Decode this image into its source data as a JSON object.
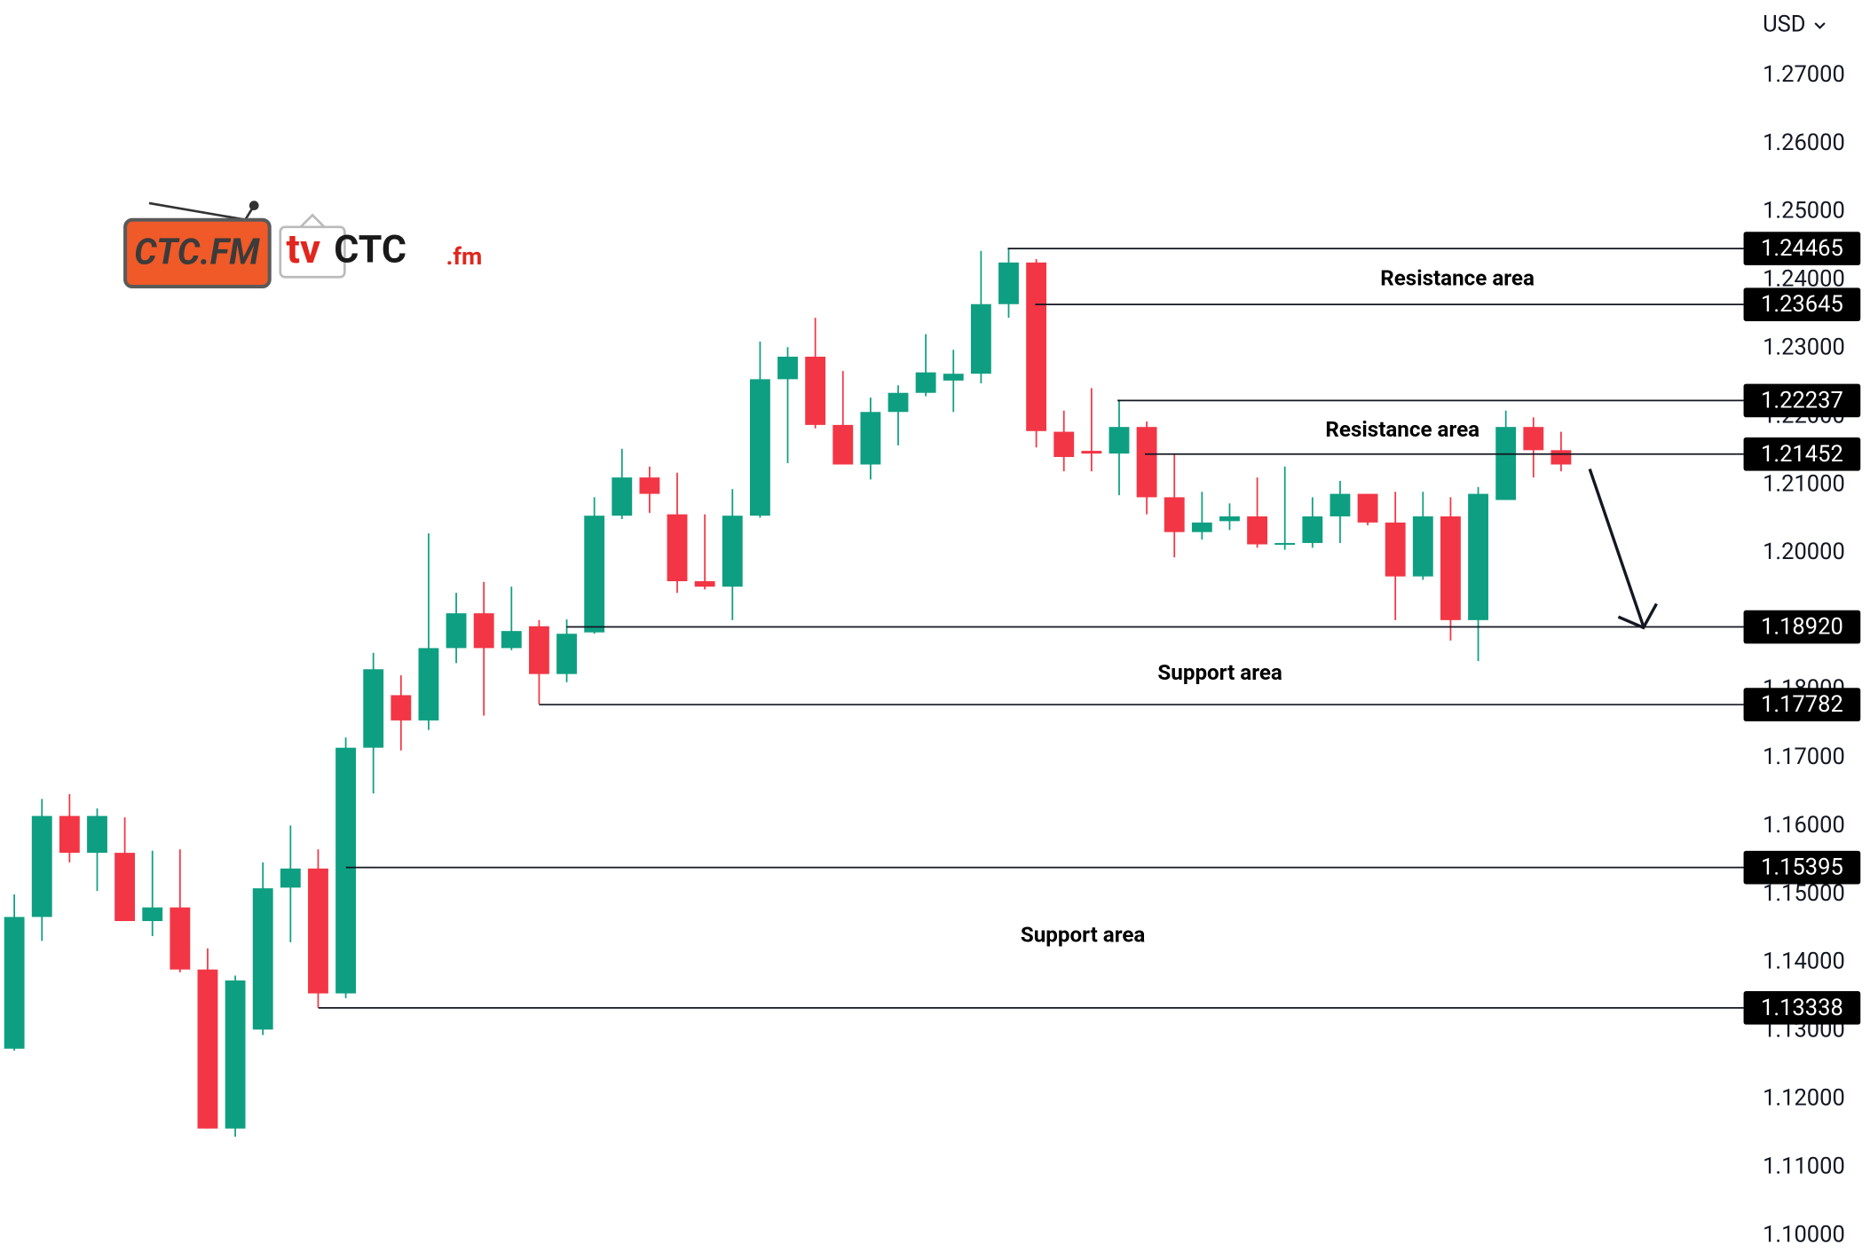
{
  "currency": "USD",
  "logo": {
    "mark": "CTC.FM",
    "tv": "tv",
    "brand": "CTC",
    "suffix": ".fm"
  },
  "chart_data": {
    "type": "candlestick",
    "up_color": "#0e9f82",
    "down_color": "#f23645",
    "open": [
      1.1274,
      1.1467,
      1.1615,
      1.1561,
      1.1561,
      1.1461,
      1.1481,
      1.139,
      1.1157,
      1.1302,
      1.151,
      1.1538,
      1.1355,
      1.1715,
      1.1792,
      1.1755,
      1.1861,
      1.1912,
      1.1861,
      1.1893,
      1.1823,
      1.1884,
      1.2055,
      1.2111,
      1.2057,
      1.1959,
      1.1951,
      1.2055,
      1.2255,
      1.2288,
      1.2188,
      1.213,
      1.2207,
      1.2235,
      1.2253,
      1.2263,
      1.2365,
      1.2426,
      1.2178,
      1.215,
      1.2146,
      1.2185,
      1.2082,
      1.2031,
      1.2047,
      1.2054,
      1.2013,
      1.2015,
      1.2054,
      1.2087,
      1.2045,
      1.1966,
      1.2054,
      1.1902,
      1.2078,
      1.2185,
      1.2151
    ],
    "high": [
      1.15,
      1.164,
      1.1647,
      1.1626,
      1.1613,
      1.1564,
      1.1566,
      1.1421,
      1.1381,
      1.1547,
      1.1601,
      1.1566,
      1.173,
      1.1854,
      1.1821,
      1.2029,
      1.1942,
      1.1958,
      1.1951,
      1.1902,
      1.1903,
      1.2082,
      1.2153,
      1.2127,
      1.2118,
      1.2057,
      1.2094,
      1.231,
      1.2302,
      1.2345,
      1.2267,
      1.2228,
      1.2246,
      1.2321,
      1.2298,
      1.2443,
      1.2447,
      1.2431,
      1.2209,
      1.2242,
      1.2225,
      1.2193,
      1.2146,
      1.209,
      1.2073,
      1.2111,
      1.2127,
      1.2082,
      1.2106,
      1.2087,
      1.209,
      1.209,
      1.2082,
      1.2097,
      1.2209,
      1.2199,
      1.2178
    ],
    "low": [
      1.1271,
      1.1432,
      1.1547,
      1.1505,
      1.1461,
      1.1439,
      1.1386,
      1.1157,
      1.1145,
      1.1294,
      1.143,
      1.1334,
      1.1348,
      1.1648,
      1.1711,
      1.1741,
      1.1839,
      1.1762,
      1.1858,
      1.1779,
      1.1811,
      1.1882,
      1.205,
      1.2059,
      1.1942,
      1.1947,
      1.1902,
      1.2052,
      1.2132,
      1.2183,
      1.213,
      1.2108,
      1.2158,
      1.223,
      1.2207,
      1.2249,
      1.2345,
      1.2155,
      1.212,
      1.212,
      1.2085,
      1.2057,
      1.1994,
      1.202,
      1.2034,
      1.2008,
      1.2005,
      1.2008,
      1.2015,
      1.2041,
      1.1902,
      1.1961,
      1.1872,
      1.1842,
      1.2078,
      1.2111,
      1.212
    ],
    "close": [
      1.1467,
      1.1615,
      1.1561,
      1.1615,
      1.1461,
      1.1481,
      1.139,
      1.1157,
      1.1374,
      1.1509,
      1.1538,
      1.1355,
      1.1715,
      1.183,
      1.1755,
      1.1861,
      1.1912,
      1.1861,
      1.1886,
      1.1823,
      1.1882,
      1.2055,
      1.2111,
      1.2087,
      1.1959,
      1.1951,
      1.2055,
      1.2255,
      1.2288,
      1.2188,
      1.213,
      1.2207,
      1.2235,
      1.2265,
      1.2263,
      1.2365,
      1.2426,
      1.2179,
      1.2141,
      1.2146,
      1.2185,
      1.2082,
      1.2031,
      1.2045,
      1.2054,
      1.2013,
      1.2015,
      1.2054,
      1.2087,
      1.2045,
      1.1966,
      1.2054,
      1.1902,
      1.2087,
      1.2185,
      1.2151,
      1.213
    ],
    "ylim": [
      1.0965,
      1.281
    ],
    "yticks": [
      {
        "value": 1.1,
        "label": "1.10000"
      },
      {
        "value": 1.11,
        "label": "1.11000"
      },
      {
        "value": 1.12,
        "label": "1.12000"
      },
      {
        "value": 1.13,
        "label": "1.13000"
      },
      {
        "value": 1.14,
        "label": "1.14000"
      },
      {
        "value": 1.15,
        "label": "1.15000"
      },
      {
        "value": 1.16,
        "label": "1.16000"
      },
      {
        "value": 1.17,
        "label": "1.17000"
      },
      {
        "value": 1.18,
        "label": "1.18000"
      },
      {
        "value": 1.19,
        "label": "1.19000"
      },
      {
        "value": 1.2,
        "label": "1.20000"
      },
      {
        "value": 1.21,
        "label": "1.21000"
      },
      {
        "value": 1.22,
        "label": "1.22000"
      },
      {
        "value": 1.23,
        "label": "1.23000"
      },
      {
        "value": 1.24,
        "label": "1.24000"
      },
      {
        "value": 1.25,
        "label": "1.25000"
      },
      {
        "value": 1.26,
        "label": "1.26000"
      },
      {
        "value": 1.27,
        "label": "1.27000"
      }
    ],
    "levels": [
      {
        "value": 1.24465,
        "label": "1.24465"
      },
      {
        "value": 1.23645,
        "label": "1.23645"
      },
      {
        "value": 1.22237,
        "label": "1.22237"
      },
      {
        "value": 1.21452,
        "label": "1.21452"
      },
      {
        "value": 1.1892,
        "label": "1.18920"
      },
      {
        "value": 1.17782,
        "label": "1.17782"
      },
      {
        "value": 1.15395,
        "label": "1.15395"
      },
      {
        "value": 1.13338,
        "label": "1.13338"
      }
    ],
    "annotations": [
      "Resistance area",
      "Resistance area",
      "Support area",
      "Support area"
    ],
    "grid": false
  }
}
